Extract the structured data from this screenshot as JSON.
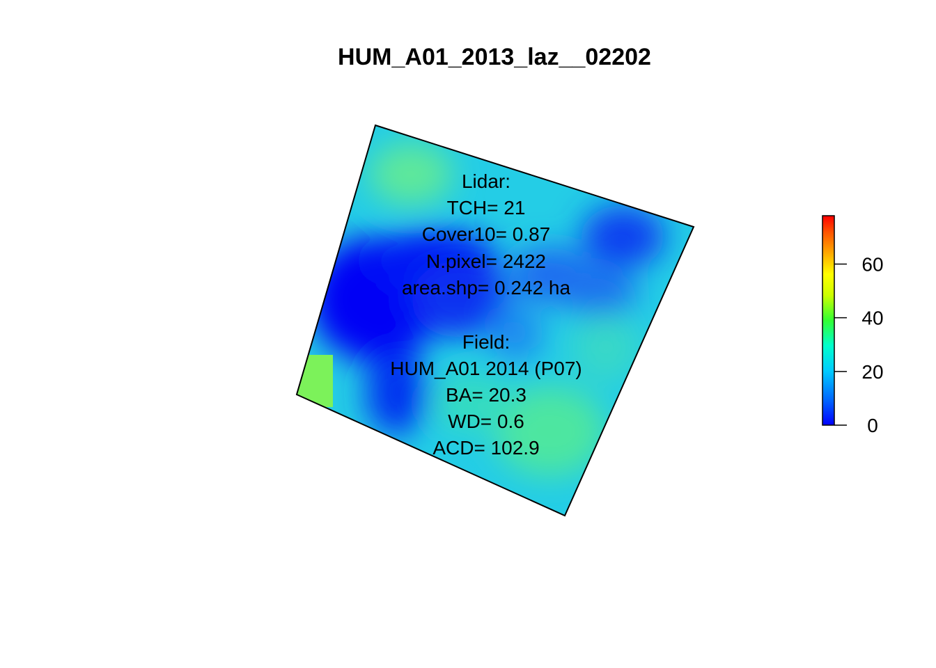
{
  "title": "HUM_A01_2013_laz__02202",
  "lidar": {
    "heading": "Lidar:",
    "tch": "TCH= 21",
    "cover10": "Cover10= 0.87",
    "npixel": "N.pixel= 2422",
    "area": "area.shp= 0.242 ha"
  },
  "field": {
    "heading": "Field:",
    "plot": "HUM_A01 2014 (P07)",
    "ba": "BA= 20.3",
    "wd": "WD= 0.6",
    "acd": "ACD= 102.9"
  },
  "legend": {
    "range": [
      0,
      78
    ],
    "ticks": [
      {
        "value": 0,
        "label": "0"
      },
      {
        "value": 20,
        "label": "20"
      },
      {
        "value": 40,
        "label": "40"
      },
      {
        "value": 60,
        "label": "60"
      }
    ],
    "colors": [
      "#0000ff",
      "#0066ff",
      "#00ccff",
      "#00ffcc",
      "#33ff33",
      "#ccff00",
      "#ffff00",
      "#ffaa00",
      "#ff5500",
      "#ff0000"
    ]
  },
  "raster_colors": {
    "low": "#0000ff",
    "mid": "#1ed7e6",
    "high": "#7cf25a"
  }
}
